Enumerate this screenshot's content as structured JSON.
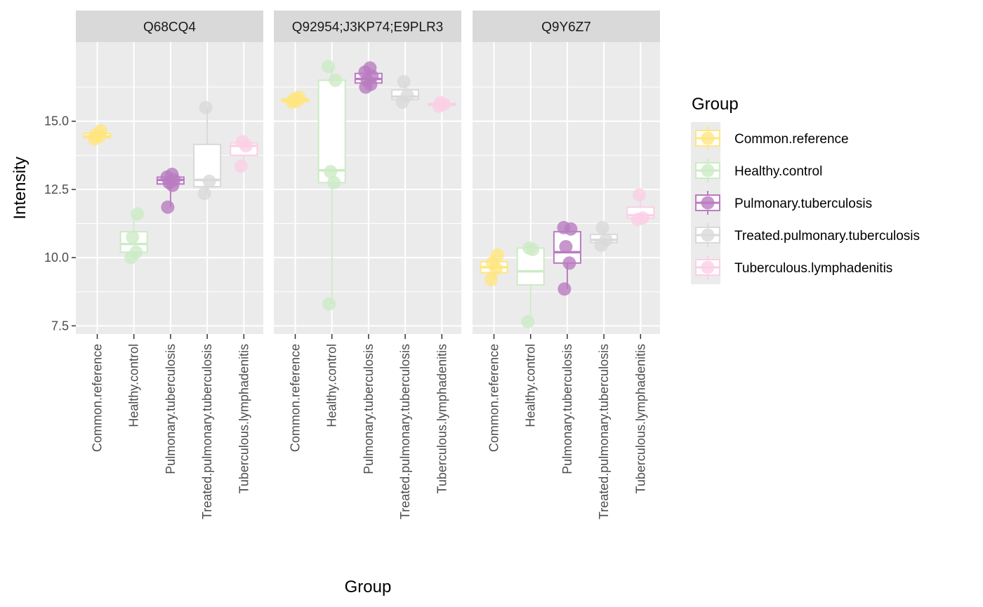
{
  "chart_data": {
    "type": "box",
    "xlabel": "Group",
    "ylabel": "Intensity",
    "ylim": [
      7.2,
      17.9
    ],
    "yticks": [
      7.5,
      10.0,
      12.5,
      15.0
    ],
    "ytick_labels": [
      "7.5",
      "10.0",
      "12.5",
      "15.0"
    ],
    "grid": true,
    "legend": {
      "title": "Group",
      "placement": "right",
      "entries": [
        {
          "label": "Common.reference",
          "color": "#FFE680"
        },
        {
          "label": "Healthy.control",
          "color": "#CCEBC5"
        },
        {
          "label": "Pulmonary.tuberculosis",
          "color": "#B97CC0"
        },
        {
          "label": "Treated.pulmonary.tuberculosis",
          "color": "#D9D9D9"
        },
        {
          "label": "Tuberculous.lymphadenitis",
          "color": "#FBCFE5"
        }
      ]
    },
    "categories": [
      "Common.reference",
      "Healthy.control",
      "Pulmonary.tuberculosis",
      "Treated.pulmonary.tuberculosis",
      "Tuberculous.lymphadenitis"
    ],
    "panels": [
      {
        "title": "Q68CQ4",
        "boxes": [
          {
            "group": "Common.reference",
            "min": 14.35,
            "q1": 14.4,
            "median": 14.45,
            "q3": 14.55,
            "max": 14.65,
            "points": [
              14.35,
              14.45,
              14.5,
              14.65
            ]
          },
          {
            "group": "Healthy.control",
            "min": 10.0,
            "q1": 10.2,
            "median": 10.5,
            "q3": 10.95,
            "max": 11.6,
            "points": [
              10.0,
              10.2,
              10.75,
              11.6
            ]
          },
          {
            "group": "Pulmonary.tuberculosis",
            "min": 11.85,
            "q1": 12.7,
            "median": 12.85,
            "q3": 12.95,
            "max": 13.05,
            "points": [
              11.85,
              12.65,
              12.75,
              12.85,
              12.95,
              13.05
            ]
          },
          {
            "group": "Treated.pulmonary.tuberculosis",
            "min": 12.35,
            "q1": 12.6,
            "median": 12.85,
            "q3": 14.15,
            "max": 15.5,
            "points": [
              12.35,
              12.8,
              15.5
            ]
          },
          {
            "group": "Tuberculous.lymphadenitis",
            "min": 13.35,
            "q1": 13.75,
            "median": 14.1,
            "q3": 14.2,
            "max": 14.25,
            "points": [
              13.35,
              14.1,
              14.25
            ]
          }
        ]
      },
      {
        "title": "Q92954;J3KP74;E9PLR3",
        "boxes": [
          {
            "group": "Common.reference",
            "min": 15.7,
            "q1": 15.72,
            "median": 15.78,
            "q3": 15.82,
            "max": 15.88,
            "points": [
              15.7,
              15.75,
              15.8,
              15.88
            ]
          },
          {
            "group": "Healthy.control",
            "min": 8.3,
            "q1": 12.75,
            "median": 13.2,
            "q3": 16.5,
            "max": 17.0,
            "points": [
              8.3,
              12.75,
              13.15,
              16.5,
              17.0
            ]
          },
          {
            "group": "Pulmonary.tuberculosis",
            "min": 16.25,
            "q1": 16.4,
            "median": 16.55,
            "q3": 16.75,
            "max": 16.95,
            "points": [
              16.25,
              16.35,
              16.5,
              16.65,
              16.8,
              16.95
            ]
          },
          {
            "group": "Treated.pulmonary.tuberculosis",
            "min": 15.7,
            "q1": 15.8,
            "median": 15.9,
            "q3": 16.15,
            "max": 16.45,
            "points": [
              15.7,
              15.95,
              16.45
            ]
          },
          {
            "group": "Tuberculous.lymphadenitis",
            "min": 15.55,
            "q1": 15.58,
            "median": 15.62,
            "q3": 15.65,
            "max": 15.68,
            "points": [
              15.55,
              15.62,
              15.68
            ]
          }
        ]
      },
      {
        "title": "Q9Y6Z7",
        "boxes": [
          {
            "group": "Common.reference",
            "min": 9.2,
            "q1": 9.45,
            "median": 9.65,
            "q3": 9.85,
            "max": 10.1,
            "points": [
              9.2,
              9.6,
              9.8,
              10.1
            ]
          },
          {
            "group": "Healthy.control",
            "min": 7.65,
            "q1": 9.0,
            "median": 9.5,
            "q3": 10.35,
            "max": 10.4,
            "points": [
              7.65,
              10.3,
              10.35
            ]
          },
          {
            "group": "Pulmonary.tuberculosis",
            "min": 8.85,
            "q1": 9.8,
            "median": 10.2,
            "q3": 10.95,
            "max": 11.1,
            "points": [
              8.85,
              9.8,
              10.4,
              11.05,
              11.1
            ]
          },
          {
            "group": "Treated.pulmonary.tuberculosis",
            "min": 10.45,
            "q1": 10.55,
            "median": 10.65,
            "q3": 10.85,
            "max": 11.1,
            "points": [
              10.45,
              10.65,
              11.1
            ]
          },
          {
            "group": "Tuberculous.lymphadenitis",
            "min": 11.4,
            "q1": 11.45,
            "median": 11.55,
            "q3": 11.85,
            "max": 12.3,
            "points": [
              11.4,
              11.45,
              12.3
            ]
          }
        ]
      }
    ]
  }
}
